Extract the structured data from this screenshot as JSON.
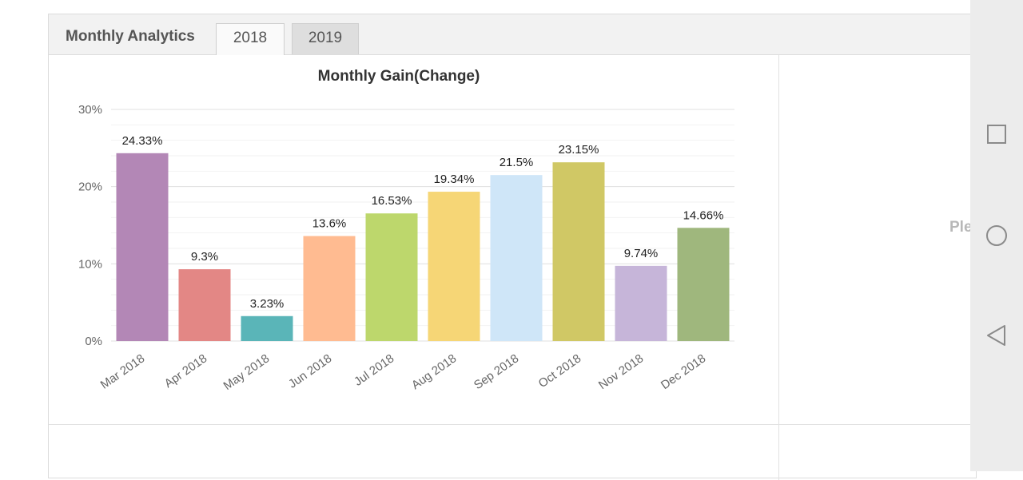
{
  "panel": {
    "title": "Monthly Analytics",
    "tabs": [
      {
        "label": "2018",
        "active": true
      },
      {
        "label": "2019",
        "active": false
      }
    ]
  },
  "side_panel": {
    "text": "Ple"
  },
  "chart_data": {
    "type": "bar",
    "title": "Monthly Gain(Change)",
    "xlabel": "",
    "ylabel": "",
    "ylim": [
      0,
      30
    ],
    "yticks": [
      "0%",
      "10%",
      "20%",
      "30%"
    ],
    "grid": true,
    "categories": [
      "Mar 2018",
      "Apr 2018",
      "May 2018",
      "Jun 2018",
      "Jul 2018",
      "Aug 2018",
      "Sep 2018",
      "Oct 2018",
      "Nov 2018",
      "Dec 2018"
    ],
    "values": [
      24.33,
      9.3,
      3.23,
      13.6,
      16.53,
      19.34,
      21.5,
      23.15,
      9.74,
      14.66
    ],
    "data_labels": [
      "24.33%",
      "9.3%",
      "3.23%",
      "13.6%",
      "16.53%",
      "19.34%",
      "21.5%",
      "23.15%",
      "9.74%",
      "14.66%"
    ],
    "colors": [
      "#b387b6",
      "#e38785",
      "#5ab5b8",
      "#ffbb91",
      "#bdd76c",
      "#f6d676",
      "#cfe6f8",
      "#d0c865",
      "#c6b5d9",
      "#9fb77d"
    ]
  },
  "navbar": {
    "buttons": [
      {
        "icon": "square-recent-apps-icon"
      },
      {
        "icon": "circle-home-icon"
      },
      {
        "icon": "triangle-back-icon"
      }
    ]
  }
}
